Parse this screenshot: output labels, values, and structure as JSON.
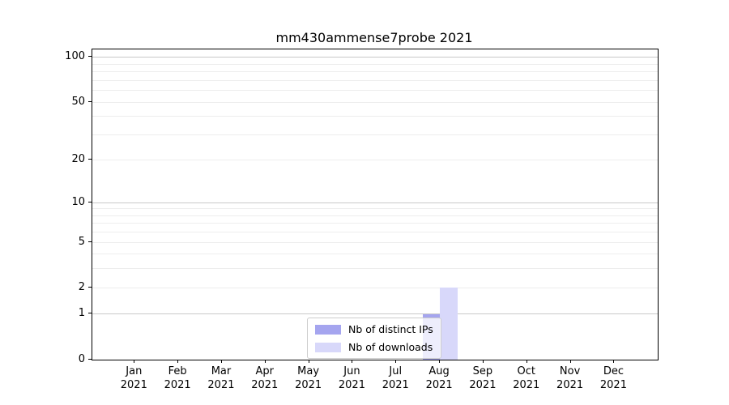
{
  "title": "mm430ammense7probe 2021",
  "chart_data": {
    "type": "bar",
    "title": "mm430ammense7probe 2021",
    "categories": [
      "Jan 2021",
      "Feb 2021",
      "Mar 2021",
      "Apr 2021",
      "May 2021",
      "Jun 2021",
      "Jul 2021",
      "Aug 2021",
      "Sep 2021",
      "Oct 2021",
      "Nov 2021",
      "Dec 2021"
    ],
    "series": [
      {
        "name": "Nb of distinct IPs",
        "color": "#a5a5ef",
        "values": [
          0,
          0,
          0,
          0,
          0,
          0,
          0,
          1,
          0,
          0,
          0,
          0
        ]
      },
      {
        "name": "Nb of downloads",
        "color": "#d8d8fa",
        "values": [
          0,
          0,
          0,
          0,
          0,
          0,
          0,
          2,
          0,
          0,
          0,
          0
        ]
      }
    ],
    "xlabel": "",
    "ylabel": "",
    "yscale": "log1p",
    "ylim": [
      0,
      113
    ],
    "yticks": [
      0,
      1,
      2,
      5,
      10,
      20,
      50,
      100
    ],
    "grid_major": [
      1,
      10,
      100
    ],
    "grid_minor": [
      2,
      3,
      4,
      5,
      6,
      7,
      8,
      9,
      20,
      30,
      40,
      50,
      60,
      70,
      80,
      90
    ],
    "legend_position": "lower center",
    "bar_group_offset": "series side-by-side, centered on month tick"
  }
}
